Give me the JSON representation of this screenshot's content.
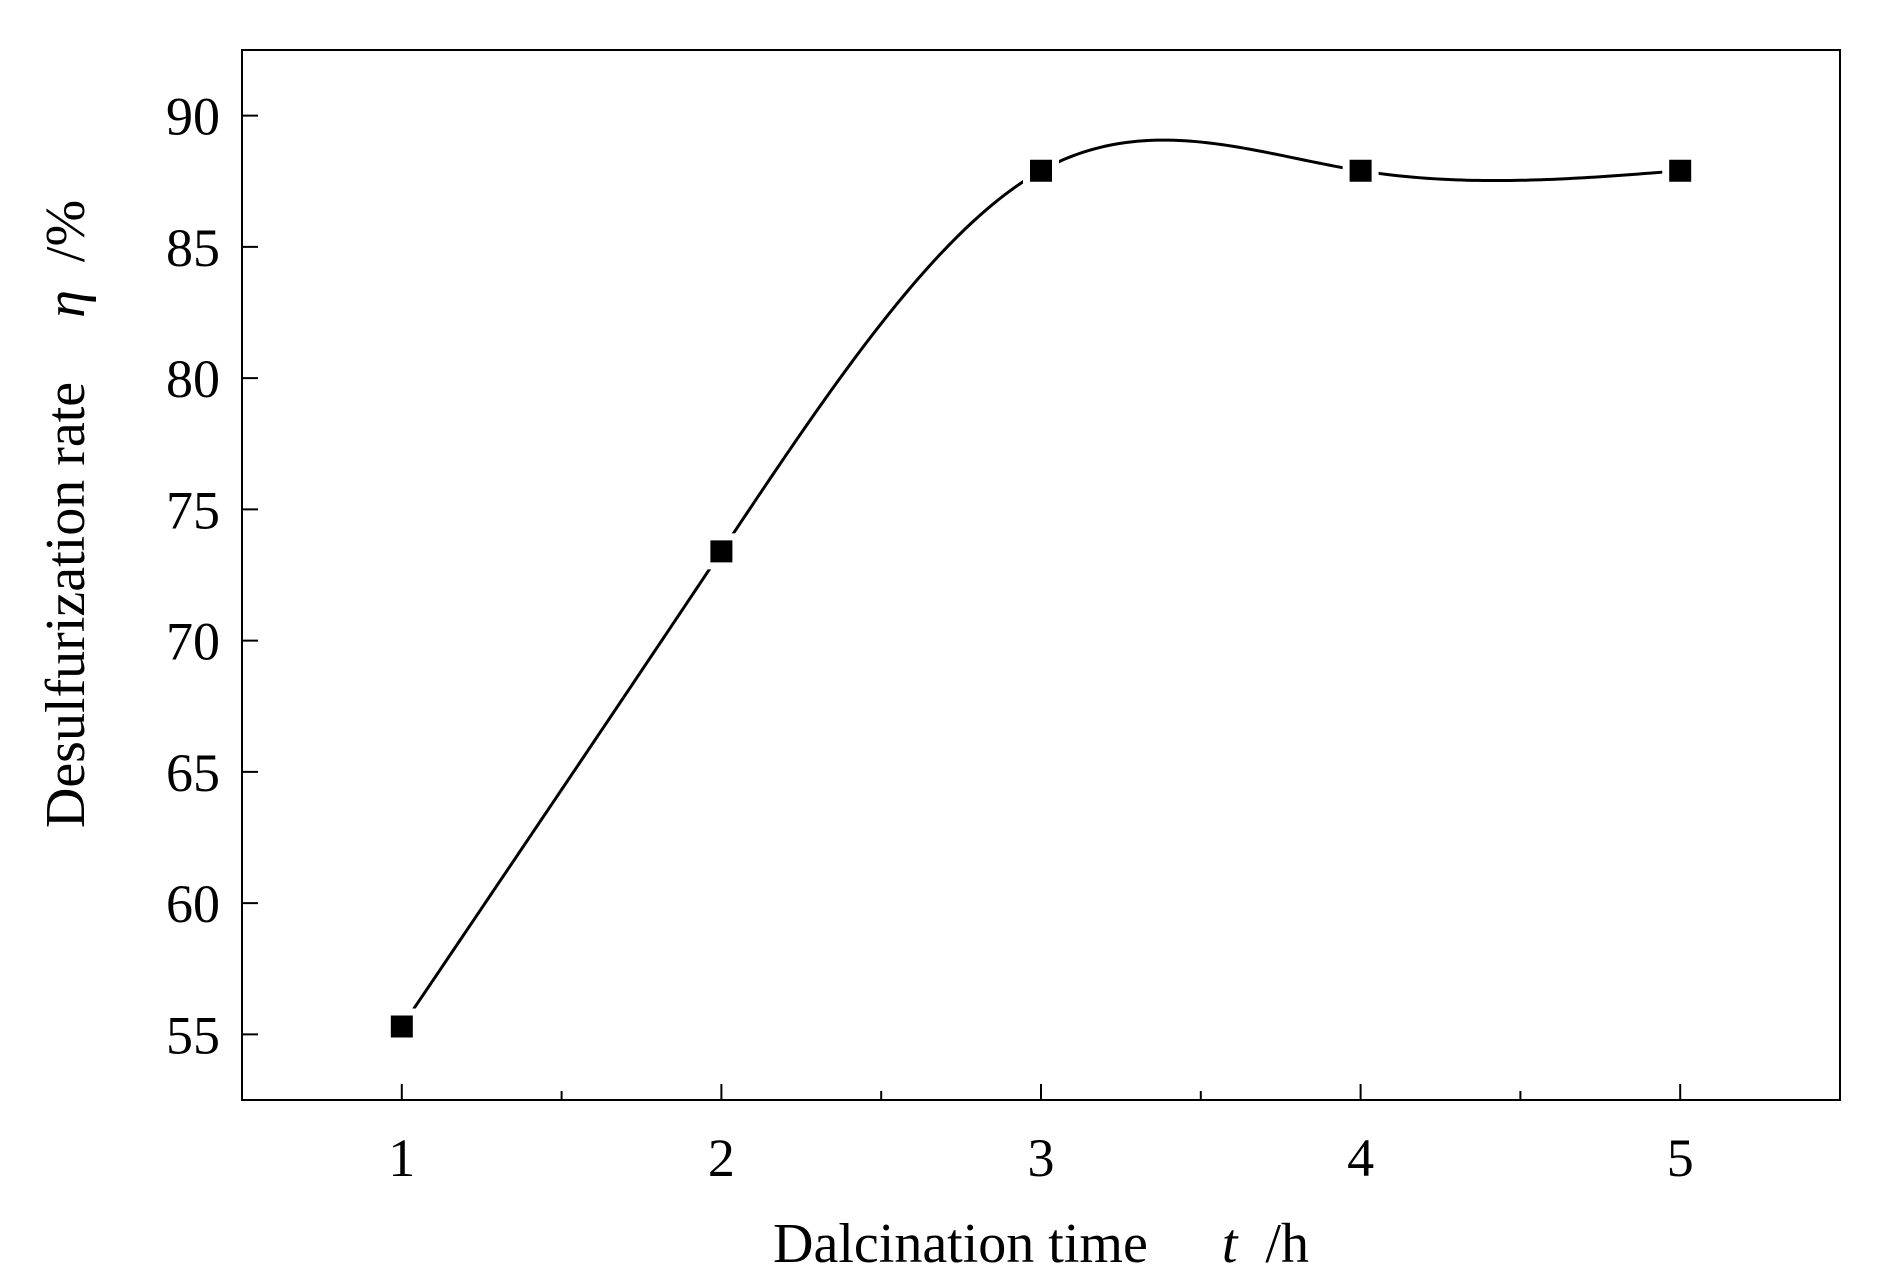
{
  "chart_data": {
    "type": "line",
    "title": "",
    "xlabel": {
      "text": "Dalcination time",
      "symbol": "t",
      "unit": "/h"
    },
    "ylabel": {
      "text": "Desulfurization rate",
      "symbol": "η",
      "unit": "/%"
    },
    "xlim": [
      0.5,
      5.5
    ],
    "ylim": [
      52.5,
      92.5
    ],
    "x_ticks": [
      1,
      2,
      3,
      4,
      5
    ],
    "x_minor_ticks": [
      1.5,
      2.5,
      3.5,
      4.5
    ],
    "y_ticks": [
      55,
      60,
      65,
      70,
      75,
      80,
      85,
      90
    ],
    "grid": false,
    "legend": "none",
    "smooth": true,
    "colors": {
      "line": "#000000",
      "marker": "#000000",
      "axes": "#000000"
    },
    "series": [
      {
        "x": [
          1,
          2,
          3,
          4,
          5
        ],
        "y": [
          55.3,
          73.4,
          87.9,
          87.9,
          87.9
        ],
        "marker": "square"
      }
    ]
  }
}
